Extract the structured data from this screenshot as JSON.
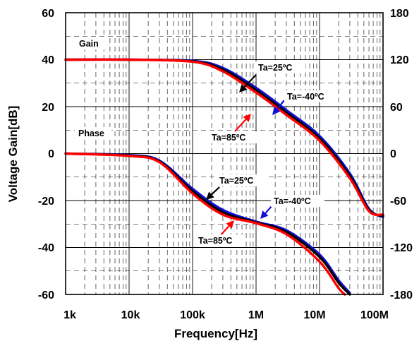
{
  "chart_data": {
    "type": "line",
    "title": "",
    "xlabel": "Frequency[Hz]",
    "ylabel": "Voltage Gain[dB]",
    "x_scale": "log",
    "xlim": [
      1000,
      100000000
    ],
    "ylim": [
      -60,
      60
    ],
    "y2lim": [
      -180,
      180
    ],
    "grid": true,
    "x_ticks": [
      "1k",
      "10k",
      "100k",
      "1M",
      "10M",
      "100M"
    ],
    "y_ticks": [
      "60",
      "40",
      "20",
      "0",
      "-20",
      "-40",
      "-60"
    ],
    "y2_ticks": [
      "180",
      "120",
      "60",
      "0",
      "-60",
      "-120",
      "-180"
    ],
    "gain_label": "Gain",
    "phase_label": "Phase",
    "annotations": {
      "gain_25": "Ta=25ºC",
      "gain_m40": "Ta=-40ºC",
      "gain_85": "Ta=85ºC",
      "phase_25": "Ta=25ºC",
      "phase_m40": "Ta=-40ºC",
      "phase_85": "Ta=85ºC"
    },
    "colors": {
      "ta25": "#000000",
      "ta_m40": "#1010d8",
      "ta85": "#ff0000"
    },
    "series": [
      {
        "temp": "Ta=-40ºC",
        "kind": "gain",
        "color": "#1010d8",
        "x": [
          1000,
          10000,
          100000,
          300000,
          1000000,
          3000000,
          10000000,
          30000000,
          60000000,
          100000000
        ],
        "y": [
          40,
          40,
          39.5,
          36.5,
          28,
          18.5,
          7.5,
          -8.5,
          -23.5,
          -27
        ]
      },
      {
        "temp": "Ta=25ºC",
        "kind": "gain",
        "color": "#000000",
        "x": [
          1000,
          10000,
          100000,
          300000,
          1000000,
          3000000,
          10000000,
          30000000,
          60000000,
          100000000
        ],
        "y": [
          40,
          40,
          39.3,
          35.8,
          27,
          17.5,
          6.5,
          -9.5,
          -24,
          -26.5
        ]
      },
      {
        "temp": "Ta=85ºC",
        "kind": "gain",
        "color": "#ff0000",
        "x": [
          1000,
          10000,
          100000,
          300000,
          1000000,
          3000000,
          10000000,
          30000000,
          60000000,
          100000000
        ],
        "y": [
          40,
          40,
          39.1,
          35,
          26,
          16.5,
          5.5,
          -10.5,
          -24.5,
          -26
        ]
      },
      {
        "temp": "Ta=-40ºC",
        "kind": "phase",
        "color": "#1010d8",
        "x": [
          1000,
          10000,
          30000,
          100000,
          300000,
          1000000,
          3000000,
          10000000,
          20000000,
          30000000
        ],
        "y": [
          0,
          -2,
          -9,
          -45,
          -72,
          -87,
          -98,
          -129,
          -162,
          -178
        ]
      },
      {
        "temp": "Ta=25ºC",
        "kind": "phase",
        "color": "#000000",
        "x": [
          1000,
          10000,
          30000,
          100000,
          300000,
          1000000,
          3000000,
          10000000,
          20000000,
          30000000
        ],
        "y": [
          0,
          -2.5,
          -10,
          -48,
          -75,
          -88,
          -100,
          -132,
          -165,
          -180
        ]
      },
      {
        "temp": "Ta=85ºC",
        "kind": "phase",
        "color": "#ff0000",
        "x": [
          1000,
          10000,
          30000,
          100000,
          300000,
          1000000,
          3000000,
          10000000,
          20000000,
          25000000
        ],
        "y": [
          0,
          -3,
          -11,
          -51,
          -78,
          -89,
          -103,
          -138,
          -172,
          -180
        ]
      }
    ]
  }
}
